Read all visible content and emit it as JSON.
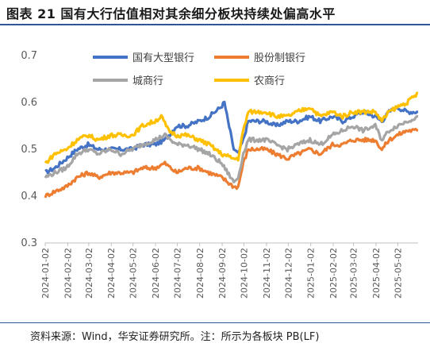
{
  "header": {
    "title": "图表 21 国有大行估值相对其余细分板块持续处偏高水平"
  },
  "footer": {
    "source": "资料来源：Wind，华安证券研究所。注：所示为各板块 PB(LF)"
  },
  "chart_data": {
    "type": "line",
    "ylim": [
      0.3,
      0.7
    ],
    "yticks": [
      "0.3",
      "0.4",
      "0.5",
      "0.6",
      "0.7"
    ],
    "x_start": "2024-01-02",
    "x_end": "2025-05-30",
    "xtick_labels": [
      "2024-01-02",
      "2024-02-02",
      "2024-03-02",
      "2024-04-02",
      "2024-05-02",
      "2024-06-02",
      "2024-07-02",
      "2024-08-02",
      "2024-09-02",
      "2024-10-02",
      "2024-11-02",
      "2024-12-02",
      "2025-01-02",
      "2025-02-02",
      "2025-03-02",
      "2025-04-02",
      "2025-05-02"
    ],
    "legend_position": "top",
    "series": [
      {
        "name": "国有大型银行",
        "color": "#4472c4",
        "points": [
          [
            "2024-01-02",
            0.45
          ],
          [
            "2024-01-15",
            0.46
          ],
          [
            "2024-01-31",
            0.48
          ],
          [
            "2024-02-15",
            0.5
          ],
          [
            "2024-03-01",
            0.51
          ],
          [
            "2024-03-15",
            0.5
          ],
          [
            "2024-04-01",
            0.5
          ],
          [
            "2024-04-15",
            0.5
          ],
          [
            "2024-05-01",
            0.5
          ],
          [
            "2024-05-15",
            0.51
          ],
          [
            "2024-06-01",
            0.51
          ],
          [
            "2024-06-15",
            0.52
          ],
          [
            "2024-07-01",
            0.55
          ],
          [
            "2024-07-15",
            0.55
          ],
          [
            "2024-08-01",
            0.56
          ],
          [
            "2024-08-15",
            0.57
          ],
          [
            "2024-08-31",
            0.59
          ],
          [
            "2024-09-05",
            0.6
          ],
          [
            "2024-09-10",
            0.56
          ],
          [
            "2024-09-18",
            0.5
          ],
          [
            "2024-09-24",
            0.49
          ],
          [
            "2024-10-01",
            0.52
          ],
          [
            "2024-10-08",
            0.56
          ],
          [
            "2024-10-20",
            0.56
          ],
          [
            "2024-11-01",
            0.56
          ],
          [
            "2024-11-15",
            0.55
          ],
          [
            "2024-12-01",
            0.56
          ],
          [
            "2024-12-15",
            0.56
          ],
          [
            "2025-01-01",
            0.57
          ],
          [
            "2025-01-15",
            0.56
          ],
          [
            "2025-02-01",
            0.57
          ],
          [
            "2025-02-15",
            0.56
          ],
          [
            "2025-03-01",
            0.57
          ],
          [
            "2025-03-15",
            0.58
          ],
          [
            "2025-04-01",
            0.57
          ],
          [
            "2025-04-10",
            0.56
          ],
          [
            "2025-04-20",
            0.58
          ],
          [
            "2025-05-01",
            0.59
          ],
          [
            "2025-05-15",
            0.58
          ],
          [
            "2025-05-30",
            0.58
          ]
        ]
      },
      {
        "name": "股份制银行",
        "color": "#ed7d31",
        "points": [
          [
            "2024-01-02",
            0.4
          ],
          [
            "2024-01-15",
            0.41
          ],
          [
            "2024-01-31",
            0.42
          ],
          [
            "2024-02-15",
            0.44
          ],
          [
            "2024-03-01",
            0.45
          ],
          [
            "2024-03-15",
            0.44
          ],
          [
            "2024-04-01",
            0.45
          ],
          [
            "2024-04-15",
            0.45
          ],
          [
            "2024-05-01",
            0.45
          ],
          [
            "2024-05-15",
            0.46
          ],
          [
            "2024-06-01",
            0.46
          ],
          [
            "2024-06-15",
            0.47
          ],
          [
            "2024-07-01",
            0.45
          ],
          [
            "2024-07-15",
            0.46
          ],
          [
            "2024-08-01",
            0.46
          ],
          [
            "2024-08-15",
            0.45
          ],
          [
            "2024-09-01",
            0.44
          ],
          [
            "2024-09-18",
            0.42
          ],
          [
            "2024-09-24",
            0.42
          ],
          [
            "2024-10-01",
            0.47
          ],
          [
            "2024-10-08",
            0.5
          ],
          [
            "2024-10-20",
            0.5
          ],
          [
            "2024-11-01",
            0.5
          ],
          [
            "2024-11-15",
            0.49
          ],
          [
            "2024-12-01",
            0.48
          ],
          [
            "2024-12-15",
            0.49
          ],
          [
            "2025-01-01",
            0.5
          ],
          [
            "2025-01-15",
            0.49
          ],
          [
            "2025-02-01",
            0.51
          ],
          [
            "2025-02-15",
            0.51
          ],
          [
            "2025-03-01",
            0.52
          ],
          [
            "2025-03-15",
            0.52
          ],
          [
            "2025-04-01",
            0.52
          ],
          [
            "2025-04-10",
            0.5
          ],
          [
            "2025-04-20",
            0.52
          ],
          [
            "2025-05-01",
            0.53
          ],
          [
            "2025-05-15",
            0.54
          ],
          [
            "2025-05-30",
            0.54
          ]
        ]
      },
      {
        "name": "城商行",
        "color": "#a5a5a5",
        "points": [
          [
            "2024-01-02",
            0.44
          ],
          [
            "2024-01-15",
            0.45
          ],
          [
            "2024-01-31",
            0.46
          ],
          [
            "2024-02-15",
            0.49
          ],
          [
            "2024-03-01",
            0.5
          ],
          [
            "2024-03-15",
            0.49
          ],
          [
            "2024-04-01",
            0.5
          ],
          [
            "2024-04-15",
            0.49
          ],
          [
            "2024-05-01",
            0.5
          ],
          [
            "2024-05-15",
            0.51
          ],
          [
            "2024-06-01",
            0.52
          ],
          [
            "2024-06-15",
            0.53
          ],
          [
            "2024-07-01",
            0.51
          ],
          [
            "2024-07-15",
            0.51
          ],
          [
            "2024-08-01",
            0.5
          ],
          [
            "2024-08-15",
            0.49
          ],
          [
            "2024-09-01",
            0.47
          ],
          [
            "2024-09-18",
            0.43
          ],
          [
            "2024-09-24",
            0.44
          ],
          [
            "2024-10-01",
            0.49
          ],
          [
            "2024-10-08",
            0.52
          ],
          [
            "2024-10-20",
            0.52
          ],
          [
            "2024-11-01",
            0.52
          ],
          [
            "2024-11-15",
            0.51
          ],
          [
            "2024-12-01",
            0.5
          ],
          [
            "2024-12-15",
            0.51
          ],
          [
            "2025-01-01",
            0.52
          ],
          [
            "2025-01-15",
            0.51
          ],
          [
            "2025-02-01",
            0.53
          ],
          [
            "2025-02-15",
            0.54
          ],
          [
            "2025-03-01",
            0.55
          ],
          [
            "2025-03-15",
            0.54
          ],
          [
            "2025-04-01",
            0.55
          ],
          [
            "2025-04-10",
            0.52
          ],
          [
            "2025-04-20",
            0.54
          ],
          [
            "2025-05-01",
            0.55
          ],
          [
            "2025-05-15",
            0.56
          ],
          [
            "2025-05-30",
            0.57
          ]
        ]
      },
      {
        "name": "农商行",
        "color": "#ffc000",
        "points": [
          [
            "2024-01-02",
            0.47
          ],
          [
            "2024-01-15",
            0.49
          ],
          [
            "2024-01-31",
            0.5
          ],
          [
            "2024-02-15",
            0.52
          ],
          [
            "2024-03-01",
            0.53
          ],
          [
            "2024-03-15",
            0.52
          ],
          [
            "2024-04-01",
            0.53
          ],
          [
            "2024-04-15",
            0.53
          ],
          [
            "2024-05-01",
            0.53
          ],
          [
            "2024-05-15",
            0.55
          ],
          [
            "2024-06-01",
            0.56
          ],
          [
            "2024-06-10",
            0.57
          ],
          [
            "2024-06-20",
            0.54
          ],
          [
            "2024-07-01",
            0.53
          ],
          [
            "2024-07-15",
            0.53
          ],
          [
            "2024-08-01",
            0.52
          ],
          [
            "2024-08-15",
            0.51
          ],
          [
            "2024-09-01",
            0.49
          ],
          [
            "2024-09-18",
            0.48
          ],
          [
            "2024-09-24",
            0.48
          ],
          [
            "2024-10-01",
            0.54
          ],
          [
            "2024-10-08",
            0.58
          ],
          [
            "2024-10-20",
            0.58
          ],
          [
            "2024-11-01",
            0.58
          ],
          [
            "2024-11-15",
            0.57
          ],
          [
            "2024-12-01",
            0.57
          ],
          [
            "2024-12-15",
            0.58
          ],
          [
            "2025-01-01",
            0.59
          ],
          [
            "2025-01-15",
            0.57
          ],
          [
            "2025-02-01",
            0.58
          ],
          [
            "2025-02-15",
            0.57
          ],
          [
            "2025-03-01",
            0.58
          ],
          [
            "2025-03-15",
            0.58
          ],
          [
            "2025-04-01",
            0.58
          ],
          [
            "2025-04-10",
            0.56
          ],
          [
            "2025-04-20",
            0.58
          ],
          [
            "2025-05-01",
            0.59
          ],
          [
            "2025-05-15",
            0.6
          ],
          [
            "2025-05-30",
            0.62
          ]
        ]
      }
    ]
  }
}
